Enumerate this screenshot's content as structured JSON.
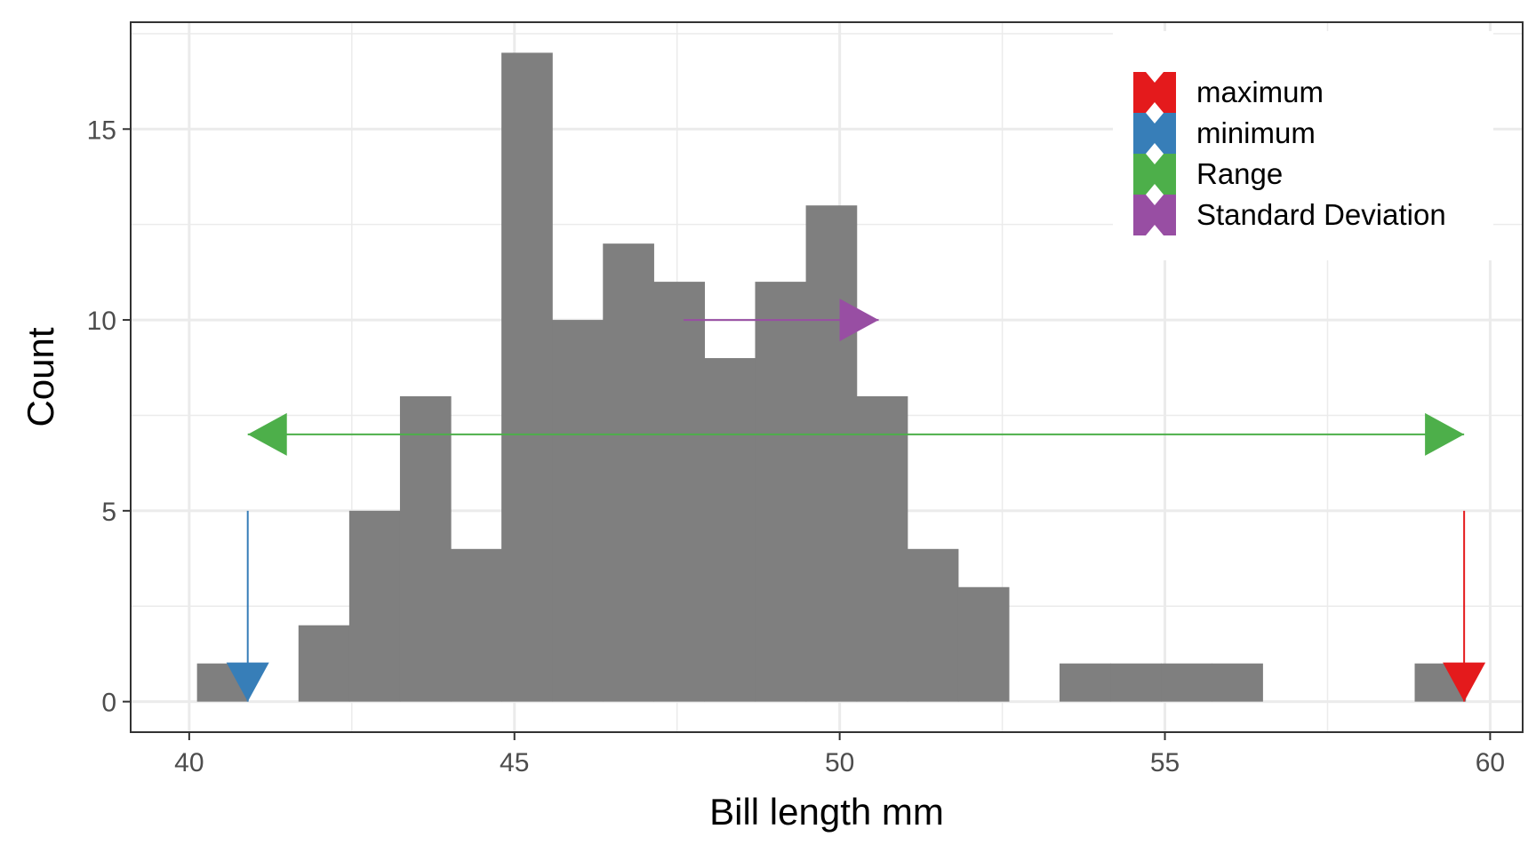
{
  "chart_data": {
    "type": "bar",
    "subtype": "histogram",
    "xlabel": "Bill length mm",
    "ylabel": "Count",
    "xlim": [
      39.1,
      60.5
    ],
    "ylim": [
      -0.8,
      17.8
    ],
    "x_ticks": [
      40,
      45,
      50,
      55,
      60
    ],
    "y_ticks": [
      0,
      5,
      10,
      15
    ],
    "grid": true,
    "bin_width": 0.78,
    "bars": [
      {
        "x0": 40.12,
        "x1": 40.9,
        "count": 1
      },
      {
        "x0": 41.68,
        "x1": 42.46,
        "count": 2
      },
      {
        "x0": 42.46,
        "x1": 43.24,
        "count": 5
      },
      {
        "x0": 43.24,
        "x1": 44.02,
        "count": 8
      },
      {
        "x0": 44.02,
        "x1": 44.8,
        "count": 4
      },
      {
        "x0": 44.8,
        "x1": 45.58,
        "count": 17
      },
      {
        "x0": 45.58,
        "x1": 46.36,
        "count": 10
      },
      {
        "x0": 46.36,
        "x1": 47.14,
        "count": 12
      },
      {
        "x0": 47.14,
        "x1": 47.92,
        "count": 11
      },
      {
        "x0": 47.92,
        "x1": 48.7,
        "count": 9
      },
      {
        "x0": 48.7,
        "x1": 49.48,
        "count": 11
      },
      {
        "x0": 49.48,
        "x1": 50.26,
        "count": 13
      },
      {
        "x0": 50.26,
        "x1": 51.04,
        "count": 8
      },
      {
        "x0": 51.04,
        "x1": 51.82,
        "count": 4
      },
      {
        "x0": 51.82,
        "x1": 52.6,
        "count": 3
      },
      {
        "x0": 53.38,
        "x1": 54.16,
        "count": 1
      },
      {
        "x0": 54.16,
        "x1": 54.94,
        "count": 1
      },
      {
        "x0": 54.94,
        "x1": 55.72,
        "count": 1
      },
      {
        "x0": 55.72,
        "x1": 56.5,
        "count": 1
      },
      {
        "x0": 58.84,
        "x1": 59.62,
        "count": 1
      }
    ],
    "bar_color": "#7f7f7f",
    "annotations": [
      {
        "name": "maximum",
        "color": "#e41a1c",
        "x_start": 59.6,
        "y_start": 5,
        "x_end": 59.6,
        "y_end": 0,
        "heads": "end"
      },
      {
        "name": "minimum",
        "color": "#377eb8",
        "x_start": 40.9,
        "y_start": 5,
        "x_end": 40.9,
        "y_end": 0,
        "heads": "end"
      },
      {
        "name": "Range",
        "color": "#4daf4a",
        "x_start": 40.9,
        "y_start": 7,
        "x_end": 59.6,
        "y_end": 7,
        "heads": "both"
      },
      {
        "name": "Standard Deviation",
        "color": "#984ea3",
        "x_start": 47.6,
        "y_start": 10,
        "x_end": 50.6,
        "y_end": 10,
        "heads": "end"
      }
    ],
    "legend": {
      "position": "top-right",
      "entries": [
        "maximum",
        "minimum",
        "Range",
        "Standard Deviation"
      ]
    }
  }
}
